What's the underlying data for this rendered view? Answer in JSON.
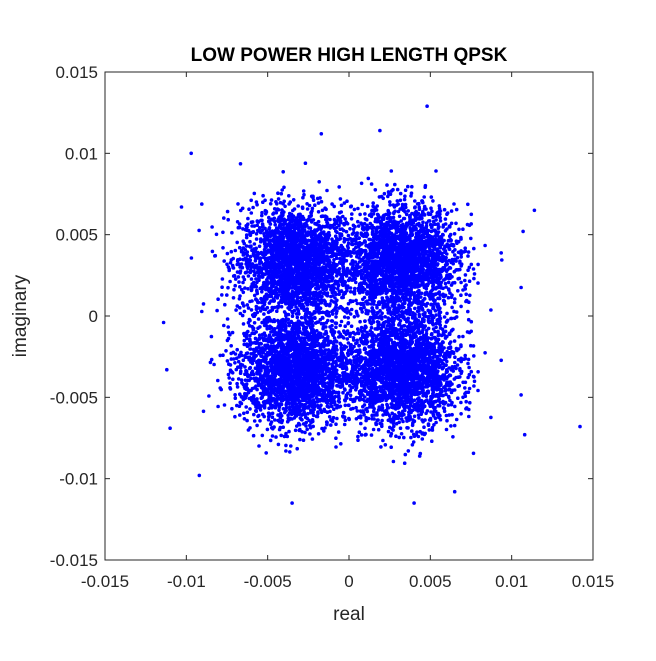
{
  "chart_data": {
    "type": "scatter",
    "title": "LOW POWER HIGH LENGTH QPSK",
    "xlabel": "real",
    "ylabel": "imaginary",
    "xlim": [
      -0.015,
      0.015
    ],
    "ylim": [
      -0.015,
      0.015
    ],
    "xticks": [
      -0.015,
      -0.01,
      -0.005,
      0,
      0.005,
      0.01,
      0.015
    ],
    "xtick_labels": [
      "-0.015",
      "-0.01",
      "-0.005",
      "0",
      "0.005",
      "0.01",
      "0.015"
    ],
    "yticks": [
      -0.015,
      -0.01,
      -0.005,
      0,
      0.005,
      0.01,
      0.015
    ],
    "ytick_labels": [
      "-0.015",
      "-0.01",
      "-0.005",
      "0",
      "0.005",
      "0.01",
      "0.015"
    ],
    "grid": false,
    "marker_color": "#0000ff",
    "cluster_centers": [
      [
        -0.0033,
        0.0033
      ],
      [
        0.0033,
        0.0033
      ],
      [
        -0.0033,
        -0.0033
      ],
      [
        0.0033,
        -0.0033
      ]
    ],
    "cluster_spread_sigma": 0.0017,
    "points_per_cluster": 2500,
    "extreme_points": [
      [
        0.0048,
        0.0129
      ],
      [
        -0.0097,
        0.01
      ],
      [
        0.0114,
        0.0065
      ],
      [
        0.0142,
        -0.0068
      ],
      [
        -0.0114,
        -0.0004
      ],
      [
        0.0108,
        -0.0073
      ],
      [
        -0.0092,
        -0.0098
      ],
      [
        -0.011,
        -0.0069
      ],
      [
        -0.0035,
        -0.0115
      ],
      [
        0.004,
        -0.0115
      ],
      [
        0.0065,
        -0.0108
      ],
      [
        0.0019,
        0.0114
      ],
      [
        -0.0017,
        0.0112
      ],
      [
        -0.0103,
        0.0067
      ],
      [
        -0.0112,
        -0.0033
      ],
      [
        0.0107,
        0.0052
      ]
    ]
  }
}
